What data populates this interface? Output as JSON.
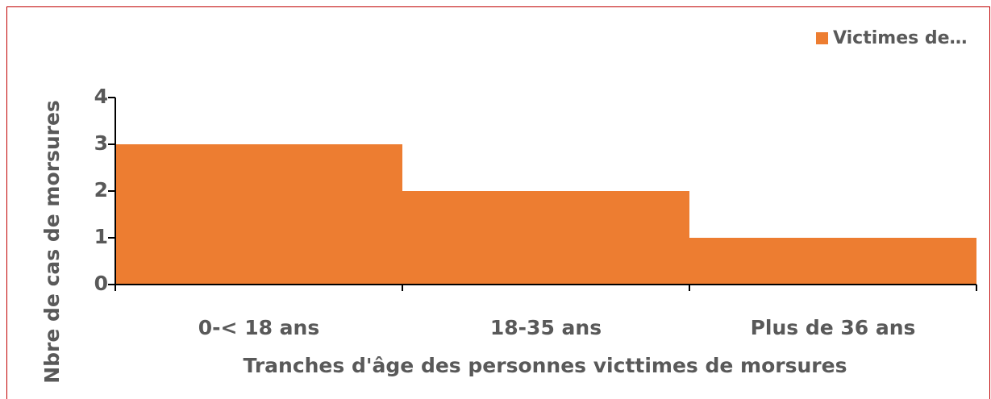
{
  "chart_data": {
    "type": "bar",
    "categories": [
      "0-< 18 ans",
      "18-35 ans",
      "Plus de 36 ans"
    ],
    "series": [
      {
        "name": "Victimes de…",
        "color": "#ed7d31",
        "values": [
          3,
          2,
          1
        ]
      }
    ],
    "xlabel": "Tranches d'âge des personnes victtimes de morsures",
    "ylabel": "Nbre de cas de morsures",
    "ylim": [
      0,
      4
    ],
    "yticks": [
      0,
      1,
      2,
      3,
      4
    ],
    "legend": "top-right",
    "grid": false
  }
}
